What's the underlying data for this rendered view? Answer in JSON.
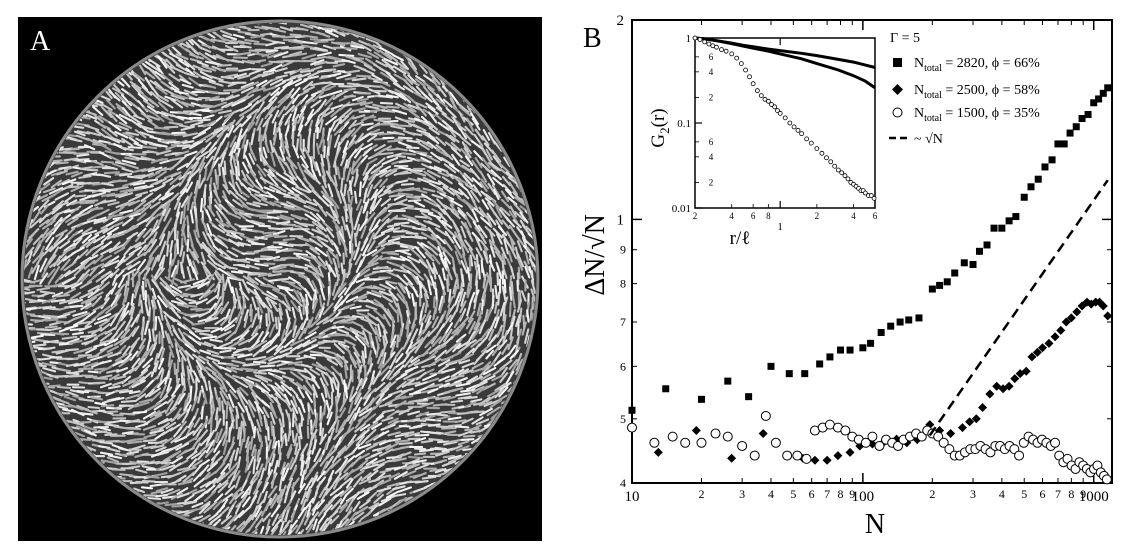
{
  "figure": {
    "panel_a_label": "A",
    "panel_b_label": "B"
  },
  "chart_data": [
    {
      "type": "scatter",
      "xlabel": "N",
      "ylabel": "ΔN/√N",
      "xscale": "log",
      "yscale": "log",
      "xlim": [
        10,
        1200
      ],
      "ylim": [
        0.4,
        2
      ],
      "x_major_ticks": [
        {
          "value": 10,
          "label": "10"
        },
        {
          "value": 100,
          "label": "100"
        },
        {
          "value": 1000,
          "label": "1000"
        }
      ],
      "x_minor_ticks": [
        {
          "value": 20,
          "label": "2"
        },
        {
          "value": 30,
          "label": "3"
        },
        {
          "value": 40,
          "label": "4"
        },
        {
          "value": 50,
          "label": "5"
        },
        {
          "value": 60,
          "label": "6"
        },
        {
          "value": 70,
          "label": "7"
        },
        {
          "value": 80,
          "label": "8"
        },
        {
          "value": 90,
          "label": "9"
        },
        {
          "value": 200,
          "label": "2"
        },
        {
          "value": 300,
          "label": "3"
        },
        {
          "value": 400,
          "label": "4"
        },
        {
          "value": 500,
          "label": "5"
        },
        {
          "value": 600,
          "label": "6"
        },
        {
          "value": 700,
          "label": "7"
        },
        {
          "value": 800,
          "label": "8"
        },
        {
          "value": 900,
          "label": "9"
        }
      ],
      "y_major_ticks": [
        {
          "value": 1,
          "label": "1"
        },
        {
          "value": 2,
          "label": "2"
        }
      ],
      "y_minor_ticks": [
        {
          "value": 0.4,
          "label": "4"
        },
        {
          "value": 0.5,
          "label": "5"
        },
        {
          "value": 0.6,
          "label": "6"
        },
        {
          "value": 0.7,
          "label": "7"
        },
        {
          "value": 0.8,
          "label": "8"
        },
        {
          "value": 0.9,
          "label": "9"
        }
      ],
      "legend": {
        "placement": "top-right",
        "header": "Γ = 5",
        "entries": [
          {
            "marker": "square",
            "label": "N_total = 2820, ϕ = 66%",
            "sub_main": "N",
            "sub": "total",
            "rest": " = 2820, ϕ = 66%"
          },
          {
            "marker": "diamond",
            "label": "N_total = 2500, ϕ = 58%",
            "sub_main": "N",
            "sub": "total",
            "rest": " = 2500, ϕ = 58%"
          },
          {
            "marker": "circle",
            "label": "N_total = 1500, ϕ = 35%",
            "sub_main": "N",
            "sub": "total",
            "rest": " = 1500, ϕ = 35%"
          },
          {
            "marker": "dash",
            "label": "~ √N"
          }
        ]
      },
      "series": [
        {
          "name": "N_total = 2820, ϕ = 66%",
          "marker": "square",
          "x": [
            10,
            14,
            20,
            26,
            32,
            40,
            48,
            56,
            65,
            72,
            80,
            88,
            100,
            108,
            120,
            132,
            145,
            158,
            175,
            200,
            215,
            232,
            250,
            275,
            300,
            320,
            345,
            370,
            400,
            430,
            460,
            500,
            535,
            575,
            615,
            660,
            700,
            745,
            790,
            840,
            890,
            945,
            1000,
            1050,
            1100,
            1150
          ],
          "y": [
            0.515,
            0.555,
            0.535,
            0.57,
            0.54,
            0.6,
            0.585,
            0.585,
            0.605,
            0.62,
            0.635,
            0.635,
            0.64,
            0.65,
            0.675,
            0.69,
            0.7,
            0.705,
            0.71,
            0.785,
            0.795,
            0.805,
            0.83,
            0.86,
            0.855,
            0.895,
            0.915,
            0.97,
            0.97,
            0.995,
            1.01,
            1.08,
            1.12,
            1.15,
            1.2,
            1.23,
            1.3,
            1.3,
            1.35,
            1.38,
            1.42,
            1.44,
            1.5,
            1.52,
            1.55,
            1.58
          ]
        },
        {
          "name": "N_total = 2500, ϕ = 58%",
          "marker": "diamond",
          "x": [
            13,
            19,
            27,
            37,
            47,
            55,
            62,
            70,
            78,
            88,
            97,
            110,
            124,
            140,
            155,
            172,
            195,
            215,
            240,
            270,
            290,
            310,
            330,
            355,
            380,
            405,
            430,
            455,
            480,
            510,
            540,
            570,
            600,
            640,
            680,
            720,
            760,
            800,
            845,
            890,
            935,
            975,
            1020,
            1060,
            1100,
            1150
          ],
          "y": [
            0.445,
            0.48,
            0.436,
            0.475,
            0.44,
            0.436,
            0.433,
            0.433,
            0.44,
            0.445,
            0.455,
            0.458,
            0.462,
            0.466,
            0.46,
            0.465,
            0.49,
            0.48,
            0.475,
            0.485,
            0.495,
            0.5,
            0.52,
            0.545,
            0.56,
            0.555,
            0.56,
            0.575,
            0.585,
            0.59,
            0.62,
            0.63,
            0.64,
            0.65,
            0.665,
            0.68,
            0.7,
            0.71,
            0.725,
            0.74,
            0.75,
            0.745,
            0.75,
            0.75,
            0.74,
            0.715
          ]
        },
        {
          "name": "N_total = 1500, ϕ = 35%",
          "marker": "circle",
          "x": [
            10,
            12.5,
            15,
            17,
            20,
            23,
            26,
            30,
            34,
            38,
            42,
            47,
            52,
            57,
            62,
            67,
            72,
            78,
            84,
            90,
            96,
            103,
            110,
            118,
            126,
            134,
            142,
            150,
            160,
            170,
            180,
            190,
            200,
            212,
            224,
            237,
            250,
            263,
            277,
            292,
            307,
            323,
            340,
            357,
            375,
            393,
            412,
            432,
            453,
            475,
            498,
            522,
            546,
            571,
            597,
            624,
            652,
            680,
            709,
            739,
            770,
            802,
            834,
            867,
            900,
            934,
            968,
            1003,
            1038,
            1073,
            1108,
            1140
          ],
          "y": [
            0.485,
            0.46,
            0.47,
            0.46,
            0.46,
            0.475,
            0.47,
            0.455,
            0.44,
            0.505,
            0.46,
            0.44,
            0.44,
            0.435,
            0.48,
            0.485,
            0.49,
            0.485,
            0.48,
            0.47,
            0.465,
            0.46,
            0.47,
            0.455,
            0.465,
            0.46,
            0.455,
            0.465,
            0.47,
            0.475,
            0.47,
            0.48,
            0.475,
            0.47,
            0.46,
            0.45,
            0.44,
            0.44,
            0.445,
            0.45,
            0.45,
            0.455,
            0.45,
            0.445,
            0.455,
            0.455,
            0.45,
            0.455,
            0.45,
            0.44,
            0.46,
            0.47,
            0.465,
            0.46,
            0.465,
            0.46,
            0.455,
            0.46,
            0.44,
            0.43,
            0.435,
            0.425,
            0.42,
            0.43,
            0.425,
            0.42,
            0.415,
            0.42,
            0.425,
            0.415,
            0.41,
            0.405
          ]
        },
        {
          "name": "~ √N",
          "marker": "dash",
          "x": [
            195,
            1150
          ],
          "y": [
            0.472,
            1.146
          ]
        }
      ]
    },
    {
      "type": "scatter",
      "ylabel": "G₂(r)",
      "ylabel_main": "G",
      "ylabel_sub": "2",
      "ylabel_rest": "(r)",
      "xlabel": "r/ℓ",
      "xscale": "log",
      "yscale": "log",
      "xlim": [
        0.2,
        6
      ],
      "ylim": [
        0.01,
        1
      ],
      "x_major_ticks": [
        {
          "value": 1,
          "label": "1"
        }
      ],
      "x_minor_ticks": [
        {
          "value": 0.2,
          "label": "2"
        },
        {
          "value": 0.4,
          "label": "4"
        },
        {
          "value": 0.6,
          "label": "6"
        },
        {
          "value": 0.8,
          "label": "8"
        },
        {
          "value": 2,
          "label": "2"
        },
        {
          "value": 4,
          "label": "4"
        },
        {
          "value": 6,
          "label": "6"
        }
      ],
      "y_major_ticks": [
        {
          "value": 0.01,
          "label": "0.01"
        },
        {
          "value": 0.1,
          "label": "0.1"
        },
        {
          "value": 1,
          "label": "1"
        }
      ],
      "y_minor_ticks": [
        {
          "value": 0.02,
          "label": "2"
        },
        {
          "value": 0.04,
          "label": "4"
        },
        {
          "value": 0.06,
          "label": "6"
        },
        {
          "value": 0.2,
          "label": "2"
        },
        {
          "value": 0.4,
          "label": "4"
        },
        {
          "value": 0.6,
          "label": "6"
        }
      ],
      "curves": [
        {
          "x": [
            0.2,
            0.25,
            0.3,
            0.4,
            0.5,
            0.6,
            0.8,
            1.0,
            1.5,
            2.0,
            3.0,
            4.0,
            5.0,
            6.0
          ],
          "y": [
            1.0,
            0.97,
            0.93,
            0.87,
            0.82,
            0.79,
            0.74,
            0.71,
            0.66,
            0.62,
            0.56,
            0.52,
            0.48,
            0.45
          ]
        },
        {
          "x": [
            0.2,
            0.25,
            0.3,
            0.4,
            0.5,
            0.6,
            0.8,
            1.0,
            1.5,
            2.0,
            3.0,
            4.0,
            5.0,
            6.0
          ],
          "y": [
            1.0,
            0.97,
            0.93,
            0.86,
            0.8,
            0.76,
            0.7,
            0.65,
            0.57,
            0.5,
            0.42,
            0.36,
            0.31,
            0.26
          ]
        }
      ],
      "points": {
        "x": [
          0.2,
          0.22,
          0.24,
          0.26,
          0.28,
          0.3,
          0.33,
          0.36,
          0.4,
          0.44,
          0.48,
          0.52,
          0.56,
          0.6,
          0.65,
          0.7,
          0.75,
          0.8,
          0.85,
          0.9,
          0.95,
          1.0,
          1.1,
          1.2,
          1.3,
          1.4,
          1.5,
          1.65,
          1.8,
          2.0,
          2.2,
          2.4,
          2.6,
          2.8,
          3.0,
          3.2,
          3.4,
          3.6,
          3.8,
          4.0,
          4.2,
          4.4,
          4.6,
          4.8,
          5.0,
          5.3,
          5.6,
          5.9
        ],
        "y": [
          1.0,
          0.96,
          0.9,
          0.85,
          0.81,
          0.78,
          0.73,
          0.7,
          0.65,
          0.58,
          0.5,
          0.42,
          0.35,
          0.29,
          0.24,
          0.21,
          0.19,
          0.18,
          0.165,
          0.155,
          0.14,
          0.13,
          0.115,
          0.1,
          0.09,
          0.082,
          0.075,
          0.065,
          0.058,
          0.05,
          0.044,
          0.039,
          0.035,
          0.031,
          0.028,
          0.026,
          0.024,
          0.022,
          0.02,
          0.019,
          0.018,
          0.017,
          0.016,
          0.016,
          0.015,
          0.014,
          0.014,
          0.013
        ]
      }
    }
  ]
}
